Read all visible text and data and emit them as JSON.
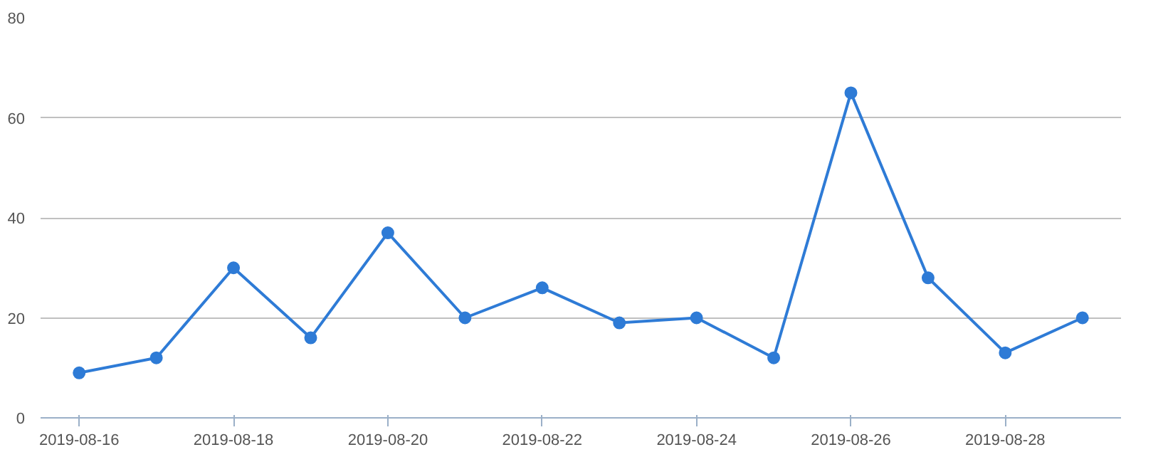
{
  "chart_data": {
    "type": "line",
    "categories": [
      "2019-08-16",
      null,
      "2019-08-18",
      null,
      "2019-08-20",
      null,
      "2019-08-22",
      null,
      "2019-08-24",
      null,
      "2019-08-26",
      null,
      "2019-08-28",
      null
    ],
    "series": [
      {
        "color": "#2e7bd6",
        "values": [
          9,
          12,
          30,
          16,
          37,
          20,
          26,
          19,
          20,
          12,
          65,
          28,
          13,
          20
        ]
      }
    ],
    "ylim": [
      0,
      80
    ],
    "yticks": [
      0,
      20,
      40,
      60,
      80
    ],
    "grid": "y",
    "marker": "circle",
    "line_style": "solid"
  }
}
